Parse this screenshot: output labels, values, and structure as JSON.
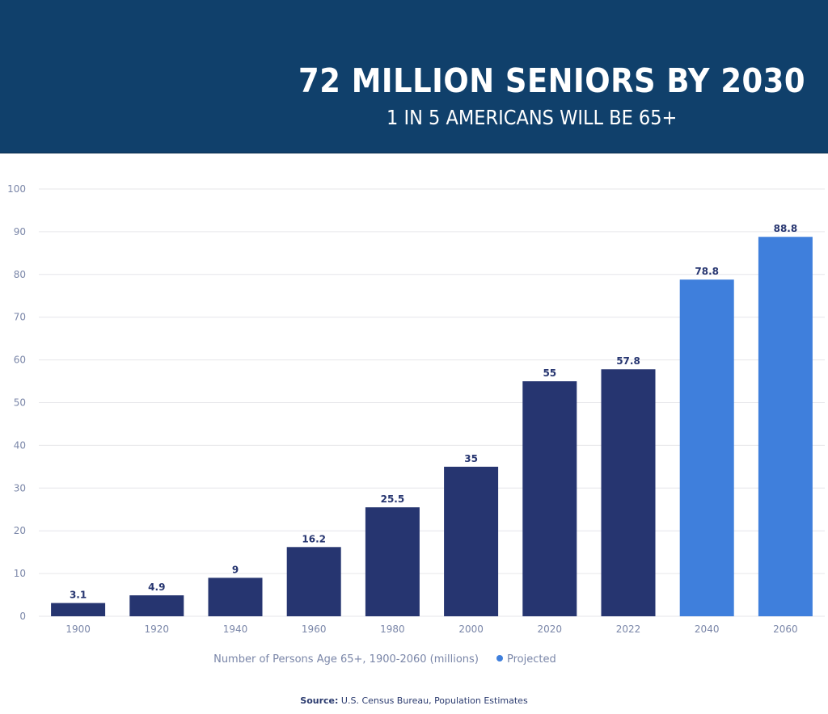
{
  "header": {
    "title": "72 MILLION SENIORS BY 2030",
    "subtitle": "1 IN 5 AMERICANS WILL BE 65+"
  },
  "colors": {
    "banner": "#10406b",
    "historical": "#263570",
    "projected": "#3f7fdc",
    "value_label": "#263570",
    "axis_text": "#7a86a8",
    "grid": "#e6e6ea"
  },
  "chart_data": {
    "type": "bar",
    "categories": [
      "1900",
      "1920",
      "1940",
      "1960",
      "1980",
      "2000",
      "2020",
      "2022",
      "2040",
      "2060"
    ],
    "values": [
      3.1,
      4.9,
      9,
      16.2,
      25.5,
      35,
      55,
      57.8,
      78.8,
      88.8
    ],
    "value_labels": [
      "3.1",
      "4.9",
      "9",
      "16.2",
      "25.5",
      "35",
      "55",
      "57.8",
      "78.8",
      "88.8"
    ],
    "projected": [
      false,
      false,
      false,
      false,
      false,
      false,
      false,
      false,
      true,
      true
    ],
    "ylim": [
      0,
      100
    ],
    "yticks": [
      0,
      10,
      20,
      30,
      40,
      50,
      60,
      70,
      80,
      90,
      100
    ],
    "grid": true,
    "legend": {
      "series_label": "Number of Persons Age 65+, 1900-2060 (millions)",
      "projected_label": "Projected",
      "placement": "bottom"
    }
  },
  "footer": {
    "source_label": "Source:",
    "source_text": "U.S. Census Bureau, Population Estimates"
  }
}
